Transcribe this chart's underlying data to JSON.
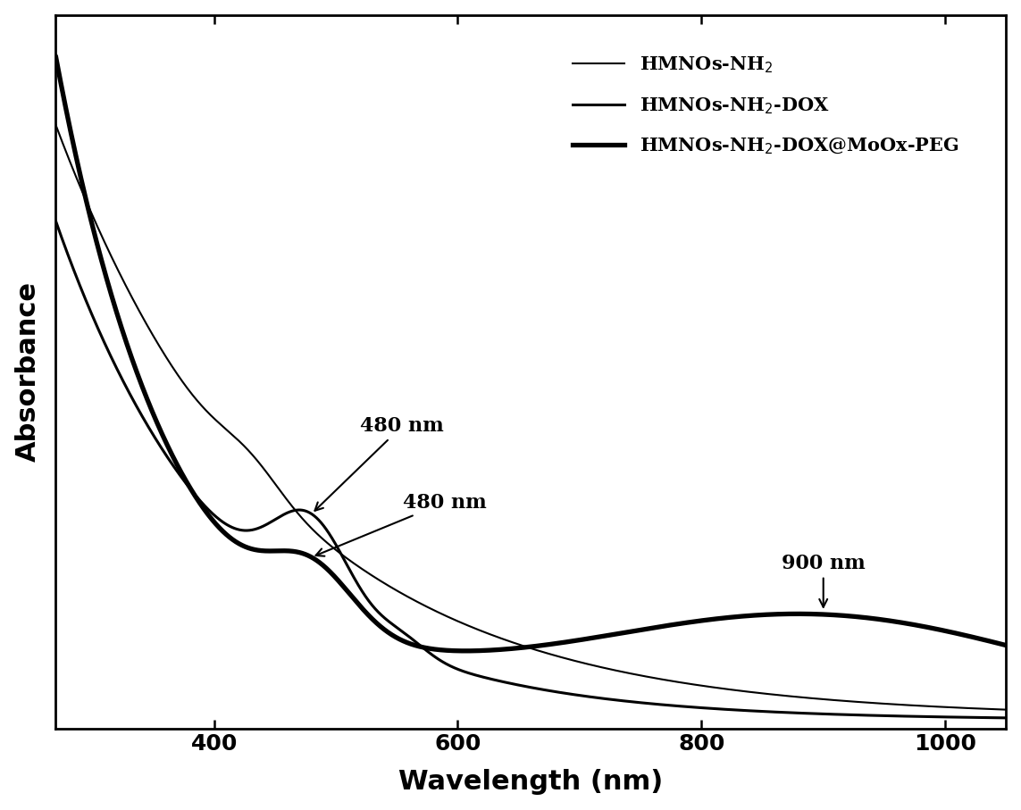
{
  "x_min": 270,
  "x_max": 1050,
  "y_label": "Absorbance",
  "x_label": "Wavelength (nm)",
  "background_color": "#ffffff",
  "line_color": "#000000",
  "legend_labels": [
    "HMNOs-NH$_2$",
    "HMNOs-NH$_2$-DOX",
    "HMNOs-NH$_2$-DOX@MoOx-PEG"
  ],
  "lw1": 1.5,
  "lw2": 2.2,
  "lw3": 3.8,
  "xlabel_fontsize": 22,
  "ylabel_fontsize": 22,
  "tick_fontsize": 18,
  "annot_fontsize": 16,
  "legend_fontsize": 15,
  "xticks": [
    400,
    600,
    800,
    1000
  ],
  "xlim": [
    270,
    1050
  ],
  "ylim": [
    0.0,
    2.6
  ]
}
